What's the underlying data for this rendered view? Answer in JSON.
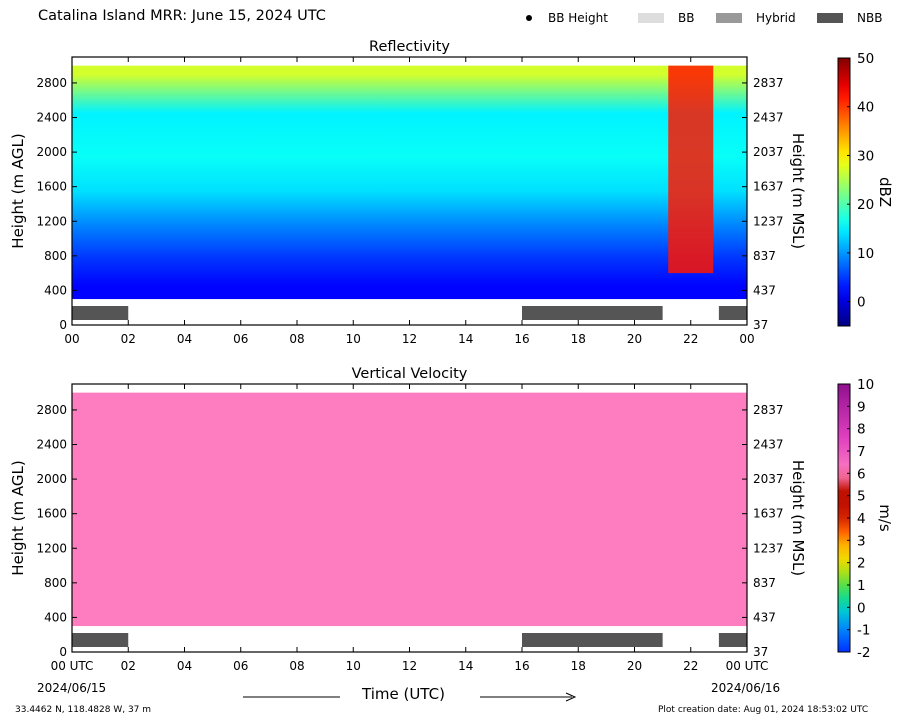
{
  "figure": {
    "title": "Catalina Island MRR:  June 15, 2024 UTC",
    "legend": [
      {
        "label": "BB Height",
        "marker": "dot",
        "color": "#000000"
      },
      {
        "label": "BB",
        "marker": "box",
        "color": "#dddddd"
      },
      {
        "label": "Hybrid",
        "marker": "box",
        "color": "#999999"
      },
      {
        "label": "NBB",
        "marker": "box",
        "color": "#555555"
      }
    ],
    "x_title": "Time (UTC)",
    "start_date": "2024/06/15",
    "end_date": "2024/06/16",
    "location": "33.4462 N, 118.4828 W, 37 m",
    "creation": "Plot creation date: Aug 01, 2024 18:53:02 UTC"
  },
  "chart_data": [
    {
      "type": "heatmap",
      "title": "Reflectivity",
      "ylabel": "Height (m AGL)",
      "ylabel_right": "Height (m MSL)",
      "colorbar_label": "dBZ",
      "xlim": [
        0,
        24
      ],
      "ylim": [
        0,
        3100
      ],
      "x_ticks": [
        "00",
        "02",
        "04",
        "06",
        "08",
        "10",
        "12",
        "14",
        "16",
        "18",
        "20",
        "22",
        "00"
      ],
      "y_ticks": [
        0,
        400,
        800,
        1200,
        1600,
        2000,
        2400,
        2800
      ],
      "y_ticks_right": [
        37,
        437,
        837,
        1237,
        1637,
        2037,
        2437,
        2837
      ],
      "colorbar_range": [
        -5,
        50
      ],
      "colorbar_ticks": [
        0,
        10,
        20,
        30,
        40,
        50
      ],
      "colormap": "jet",
      "data_range_m": [
        300,
        3000
      ],
      "layers_dBZ": [
        {
          "from": 300,
          "to": 600,
          "dbz": 2
        },
        {
          "from": 600,
          "to": 1000,
          "dbz": 5
        },
        {
          "from": 1000,
          "to": 1300,
          "dbz": 9
        },
        {
          "from": 1300,
          "to": 1800,
          "dbz": 14
        },
        {
          "from": 1800,
          "to": 2100,
          "dbz": 16
        },
        {
          "from": 2100,
          "to": 2800,
          "dbz": 15
        },
        {
          "from": 2800,
          "to": 3000,
          "dbz": 27
        }
      ],
      "high_reflectivity_period": {
        "start": 21.2,
        "end": 22.8,
        "dbz": 42
      },
      "classification_bars": [
        {
          "start": 0.0,
          "end": 2.0,
          "class": "NBB"
        },
        {
          "start": 16.0,
          "end": 21.0,
          "class": "NBB"
        },
        {
          "start": 23.0,
          "end": 24.0,
          "class": "NBB"
        }
      ]
    },
    {
      "type": "heatmap",
      "title": "Vertical Velocity",
      "ylabel": "Height (m AGL)",
      "ylabel_right": "Height (m MSL)",
      "colorbar_label": "m/s",
      "xlim": [
        0,
        24
      ],
      "ylim": [
        0,
        3100
      ],
      "x_ticks": [
        "00 UTC",
        "02",
        "04",
        "06",
        "08",
        "10",
        "12",
        "14",
        "16",
        "18",
        "20",
        "22",
        "00 UTC"
      ],
      "y_ticks": [
        0,
        400,
        800,
        1200,
        1600,
        2000,
        2400,
        2800
      ],
      "y_ticks_right": [
        37,
        437,
        837,
        1237,
        1637,
        2037,
        2437,
        2837
      ],
      "colorbar_range": [
        -2,
        10
      ],
      "colorbar_ticks": [
        -2,
        -1,
        0,
        1,
        2,
        3,
        4,
        5,
        6,
        7,
        8,
        9,
        10
      ],
      "colormap": "velocity",
      "data_range_m": [
        300,
        3000
      ],
      "dominant_value_ms": 6,
      "classification_bars": [
        {
          "start": 0.0,
          "end": 2.0,
          "class": "NBB"
        },
        {
          "start": 16.0,
          "end": 21.0,
          "class": "NBB"
        },
        {
          "start": 23.0,
          "end": 24.0,
          "class": "NBB"
        }
      ]
    }
  ]
}
